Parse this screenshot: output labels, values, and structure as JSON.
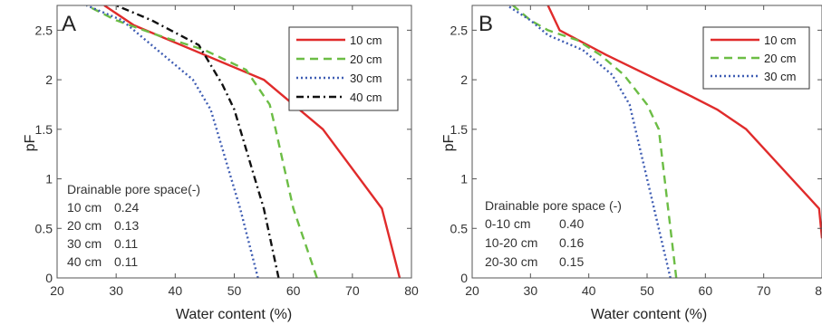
{
  "chart_data": [
    {
      "panel_label": "A",
      "type": "line",
      "xlabel": "Water content (%)",
      "ylabel": "pF",
      "xlim": [
        20,
        80
      ],
      "ylim": [
        0,
        2.75
      ],
      "xticks": [
        20,
        30,
        40,
        50,
        60,
        70,
        80
      ],
      "yticks": [
        0,
        0.5,
        1,
        1.5,
        2,
        2.5
      ],
      "ytick_labels": [
        "0",
        "0.5",
        "1",
        "1.5",
        "2",
        "2.5"
      ],
      "legend_position": "top-right",
      "series": [
        {
          "name": "10 cm",
          "color": "#e02b2b",
          "dash": "solid",
          "points": [
            [
              78,
              0
            ],
            [
              75,
              0.7
            ],
            [
              65,
              1.5
            ],
            [
              61,
              1.7
            ],
            [
              55,
              2.0
            ],
            [
              45,
              2.25
            ],
            [
              33,
              2.55
            ],
            [
              28,
              2.75
            ]
          ]
        },
        {
          "name": "20 cm",
          "color": "#6cbd45",
          "dash": "dashed",
          "points": [
            [
              64,
              0
            ],
            [
              60,
              0.7
            ],
            [
              57,
              1.5
            ],
            [
              56,
              1.75
            ],
            [
              52,
              2.1
            ],
            [
              45,
              2.3
            ],
            [
              37,
              2.45
            ],
            [
              30,
              2.6
            ],
            [
              25,
              2.75
            ]
          ]
        },
        {
          "name": "30 cm",
          "color": "#3f5db3",
          "dash": "dotted",
          "points": [
            [
              54,
              0
            ],
            [
              51,
              0.7
            ],
            [
              47,
              1.5
            ],
            [
              46,
              1.7
            ],
            [
              43,
              2.0
            ],
            [
              37,
              2.3
            ],
            [
              31,
              2.6
            ],
            [
              25,
              2.75
            ]
          ]
        },
        {
          "name": "40 cm",
          "color": "#111111",
          "dash": "dashdot",
          "points": [
            [
              57.5,
              0
            ],
            [
              55,
              0.7
            ],
            [
              52,
              1.3
            ],
            [
              50,
              1.7
            ],
            [
              48,
              1.95
            ],
            [
              44,
              2.35
            ],
            [
              36,
              2.6
            ],
            [
              30,
              2.75
            ]
          ]
        }
      ],
      "annotation": {
        "title": "Drainable pore space(-)",
        "rows": [
          {
            "depth": "10 cm",
            "value": "0.24"
          },
          {
            "depth": "20 cm",
            "value": "0.13"
          },
          {
            "depth": "30 cm",
            "value": "0.11"
          },
          {
            "depth": "40 cm",
            "value": "0.11"
          }
        ]
      }
    },
    {
      "panel_label": "B",
      "type": "line",
      "xlabel": "Water content (%)",
      "ylabel": "pF",
      "xlim": [
        20,
        80
      ],
      "ylim": [
        0,
        2.75
      ],
      "xticks": [
        20,
        30,
        40,
        50,
        60,
        70,
        80
      ],
      "yticks": [
        0,
        0.5,
        1,
        1.5,
        2,
        2.5
      ],
      "ytick_labels": [
        "0",
        "0.5",
        "1",
        "1.5",
        "2",
        "2.5"
      ],
      "legend_position": "top-right",
      "series": [
        {
          "name": "10 cm",
          "color": "#e02b2b",
          "dash": "solid",
          "points": [
            [
              80,
              0.4
            ],
            [
              79.5,
              0.7
            ],
            [
              67,
              1.5
            ],
            [
              62,
              1.7
            ],
            [
              57,
              1.85
            ],
            [
              50,
              2.05
            ],
            [
              43,
              2.25
            ],
            [
              35,
              2.5
            ],
            [
              33,
              2.75
            ]
          ]
        },
        {
          "name": "20 cm",
          "color": "#6cbd45",
          "dash": "dashed",
          "points": [
            [
              55,
              0
            ],
            [
              52,
              1.5
            ],
            [
              50,
              1.75
            ],
            [
              46,
              2.05
            ],
            [
              42,
              2.25
            ],
            [
              38,
              2.4
            ],
            [
              33,
              2.5
            ],
            [
              30,
              2.6
            ],
            [
              27,
              2.75
            ]
          ]
        },
        {
          "name": "30 cm",
          "color": "#3f5db3",
          "dash": "dotted",
          "points": [
            [
              54,
              0
            ],
            [
              50,
              1.0
            ],
            [
              48,
              1.5
            ],
            [
              47,
              1.75
            ],
            [
              44,
              2.05
            ],
            [
              39,
              2.3
            ],
            [
              33,
              2.45
            ],
            [
              30,
              2.6
            ],
            [
              26,
              2.75
            ]
          ]
        }
      ],
      "annotation": {
        "title": "Drainable pore space (-)",
        "rows": [
          {
            "depth": "0-10 cm",
            "value": "0.40"
          },
          {
            "depth": "10-20 cm",
            "value": "0.16"
          },
          {
            "depth": "20-30 cm",
            "value": "0.15"
          }
        ]
      }
    }
  ]
}
